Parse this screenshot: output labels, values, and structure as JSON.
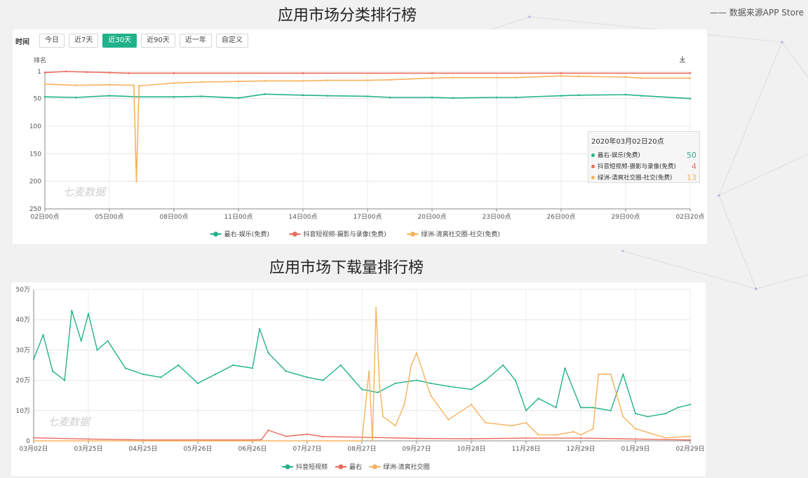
{
  "page": {
    "title_rank": "应用市场分类排行榜",
    "title_download": "应用市场下载量排行榜",
    "source": "—— 数据来源APP Store",
    "watermark": "七麦数据"
  },
  "toolbar": {
    "label": "时间",
    "buttons": [
      "今日",
      "近7天",
      "近30天",
      "近90天",
      "近一年",
      "自定义"
    ],
    "active": "近30天"
  },
  "tooltip": {
    "title": "2020年03月02日20点",
    "rows": [
      {
        "name": "最右-娱乐(免费)",
        "value": "50",
        "color": "#21b28a"
      },
      {
        "name": "抖音短视频-摄影与录像(免费)",
        "value": "4",
        "color": "#eb6b5c"
      },
      {
        "name": "绿洲-清爽社交圈-社交(免费)",
        "value": "13",
        "color": "#f7b25d"
      }
    ]
  },
  "chart_data": [
    {
      "type": "line",
      "title": "应用市场分类排行榜",
      "ylabel": "排名",
      "y_inverted": true,
      "ylim": [
        1,
        250
      ],
      "y_ticks": [
        1,
        50,
        100,
        150,
        200,
        250
      ],
      "x_ticks": [
        "02日00点",
        "05日00点",
        "08日00点",
        "11日00点",
        "14日00点",
        "17日00点",
        "20日00点",
        "23日00点",
        "26日00点",
        "29日00点",
        "02日20点"
      ],
      "grid": true,
      "legend_position": "bottom",
      "series": [
        {
          "name": "最右-娱乐(免费)",
          "color": "#21b28a",
          "x": [
            "02日00点",
            "03日12点",
            "05日00点",
            "06日12点",
            "08日00点",
            "09日12点",
            "11日00点",
            "12日12点",
            "14日00点",
            "15日12点",
            "17日00点",
            "18日12点",
            "20日00点",
            "21日12点",
            "23日00点",
            "24日12点",
            "26日00点",
            "27日12点",
            "29日00点",
            "30日12点",
            "02日20点"
          ],
          "values": [
            47,
            48,
            45,
            47,
            47,
            46,
            49,
            42,
            44,
            45,
            46,
            48,
            48,
            49,
            48,
            48,
            45,
            44,
            43,
            45,
            50
          ]
        },
        {
          "name": "抖音短视频-摄影与录像(免费)",
          "color": "#eb6b5c",
          "x": [
            "02日00点",
            "03日00点",
            "04日00点",
            "05日00点",
            "06日00点",
            "08日00点",
            "14日00点",
            "20日00点",
            "26日00点",
            "02日20点"
          ],
          "values": [
            3,
            1,
            2,
            3,
            4,
            4,
            4,
            4,
            4,
            4
          ]
        },
        {
          "name": "绿洲-清爽社交圈-社交(免费)",
          "color": "#f7b25d",
          "x": [
            "02日00点",
            "03日12点",
            "05日00点",
            "06日06点",
            "06日09点",
            "06日12点",
            "08日00点",
            "09日12点",
            "11日00点",
            "12日12点",
            "14日00点",
            "15日12点",
            "17日00点",
            "18日12点",
            "20日00点",
            "21日12点",
            "23日00点",
            "24日12点",
            "26日00点",
            "27日12点",
            "29日00点",
            "30日12点",
            "02日20点"
          ],
          "values": [
            24,
            26,
            25,
            26,
            200,
            27,
            22,
            20,
            19,
            18,
            18,
            17,
            17,
            16,
            13,
            12,
            12,
            12,
            9,
            10,
            11,
            13,
            13
          ]
        }
      ]
    },
    {
      "type": "line",
      "title": "应用市场下载量排行榜",
      "ylim": [
        0,
        500000
      ],
      "y_ticks": [
        "0",
        "10万",
        "20万",
        "30万",
        "40万",
        "50万"
      ],
      "x_ticks": [
        "03月02日",
        "03月25日",
        "04月25日",
        "05月26日",
        "06月26日",
        "07月27日",
        "08月27日",
        "09月27日",
        "10月28日",
        "11月28日",
        "12月29日",
        "01月29日",
        "02月29日"
      ],
      "grid": true,
      "legend_position": "bottom",
      "series": [
        {
          "name": "抖音短视频",
          "color": "#21b28a",
          "x": [
            "03月02日",
            "03月06日",
            "03月10日",
            "03月15日",
            "03月18日",
            "03月22日",
            "03月25日",
            "03月30日",
            "04月05日",
            "04月15日",
            "04月25日",
            "05月05日",
            "05月15日",
            "05月26日",
            "06月05日",
            "06月15日",
            "06月26日",
            "06月30日",
            "07月05日",
            "07月15日",
            "07月27日",
            "08月05日",
            "08月15日",
            "08月27日",
            "09月05日",
            "09月15日",
            "09月27日",
            "10月05日",
            "10月15日",
            "10月28日",
            "11月05日",
            "11月15日",
            "11月22日",
            "11月28日",
            "12月05日",
            "12月15日",
            "12月20日",
            "12月29日",
            "01月05日",
            "01月15日",
            "01月22日",
            "01月29日",
            "02月05日",
            "02月15日",
            "02月22日",
            "02月29日"
          ],
          "values": [
            270000,
            350000,
            230000,
            200000,
            430000,
            330000,
            420000,
            300000,
            330000,
            240000,
            220000,
            210000,
            250000,
            190000,
            220000,
            250000,
            240000,
            370000,
            290000,
            230000,
            210000,
            200000,
            250000,
            170000,
            160000,
            190000,
            200000,
            190000,
            180000,
            170000,
            200000,
            250000,
            200000,
            100000,
            140000,
            110000,
            240000,
            110000,
            110000,
            100000,
            220000,
            90000,
            80000,
            90000,
            110000,
            120000
          ]
        },
        {
          "name": "最右",
          "color": "#eb6b5c",
          "x": [
            "03月02日",
            "03月25日",
            "04月25日",
            "05月26日",
            "06月26日",
            "07月01日",
            "07月05日",
            "07月15日",
            "07月27日",
            "08月05日",
            "08月27日",
            "09月27日",
            "10月28日",
            "11月28日",
            "12月29日",
            "01月29日",
            "02月29日"
          ],
          "values": [
            10000,
            6000,
            3000,
            3000,
            3000,
            4000,
            35000,
            15000,
            22000,
            14000,
            12000,
            8000,
            7000,
            9000,
            9000,
            6000,
            3000
          ]
        },
        {
          "name": "绿洲-清爽社交圈",
          "color": "#f7b25d",
          "x": [
            "03月02日",
            "03月25日",
            "04月25日",
            "05月26日",
            "06月26日",
            "07月27日",
            "08月27日",
            "08月31日",
            "09月02日",
            "09月04日",
            "09月06日",
            "09月08日",
            "09月15日",
            "09月20日",
            "09月24日",
            "09月27日",
            "10月05日",
            "10月15日",
            "10月28日",
            "11月05日",
            "11月20日",
            "11月28日",
            "12月05日",
            "12月15日",
            "12月25日",
            "12月29日",
            "01月05日",
            "01月08日",
            "01月15日",
            "01月22日",
            "01月29日",
            "02月15日",
            "02月29日"
          ],
          "values": [
            0,
            0,
            0,
            0,
            0,
            0,
            0,
            230000,
            0,
            440000,
            180000,
            80000,
            50000,
            120000,
            250000,
            290000,
            150000,
            70000,
            120000,
            60000,
            50000,
            60000,
            20000,
            20000,
            30000,
            20000,
            40000,
            220000,
            220000,
            80000,
            40000,
            10000,
            15000
          ]
        }
      ]
    }
  ]
}
